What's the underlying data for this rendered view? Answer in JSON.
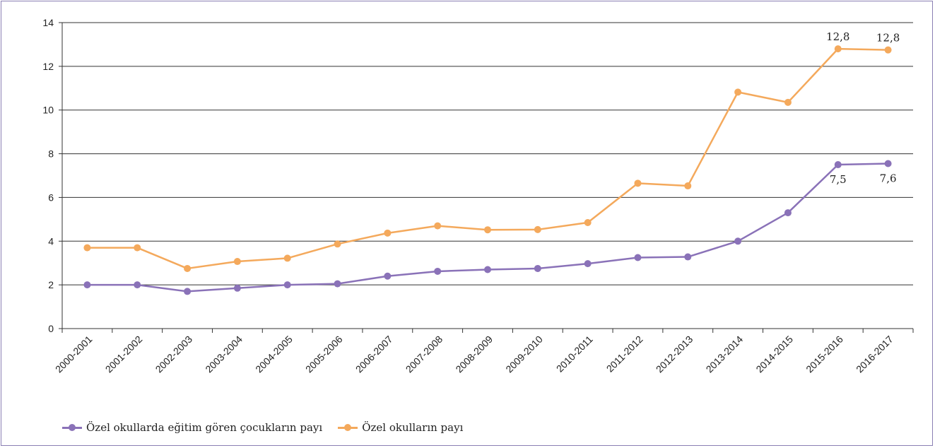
{
  "chart_data": {
    "type": "line",
    "categories": [
      "2000-2001",
      "2001-2002",
      "2002-2003",
      "2003-2004",
      "2004-2005",
      "2005-2006",
      "2006-2007",
      "2007-2008",
      "2008-2009",
      "2009-2010",
      "2010-2011",
      "2011-2012",
      "2012-2013",
      "2013-2014",
      "2014-2015",
      "2015-2016",
      "2016-2017"
    ],
    "series": [
      {
        "name": "Özel okullarda eğitim gören çocukların payı",
        "color": "#8a72b8",
        "values": [
          2.0,
          2.0,
          1.7,
          1.85,
          2.0,
          2.05,
          2.4,
          2.62,
          2.7,
          2.75,
          2.97,
          3.25,
          3.28,
          4.0,
          5.3,
          7.5,
          7.55
        ],
        "data_labels": {
          "15": "7,5",
          "16": "7,6"
        },
        "label_position": "below"
      },
      {
        "name": "Özel okulların payı",
        "color": "#f4a95c",
        "values": [
          3.7,
          3.7,
          2.75,
          3.07,
          3.22,
          3.87,
          4.37,
          4.7,
          4.52,
          4.53,
          4.85,
          6.65,
          6.53,
          10.82,
          10.35,
          12.8,
          12.75
        ],
        "data_labels": {
          "15": "12,8",
          "16": "12,8"
        },
        "label_position": "above"
      }
    ],
    "ylim": [
      0,
      14
    ],
    "yticks": [
      "0",
      "2",
      "4",
      "6",
      "8",
      "10",
      "12",
      "14"
    ],
    "grid": true,
    "legend_position": "bottom-left",
    "title": "",
    "xlabel": "",
    "ylabel": ""
  }
}
